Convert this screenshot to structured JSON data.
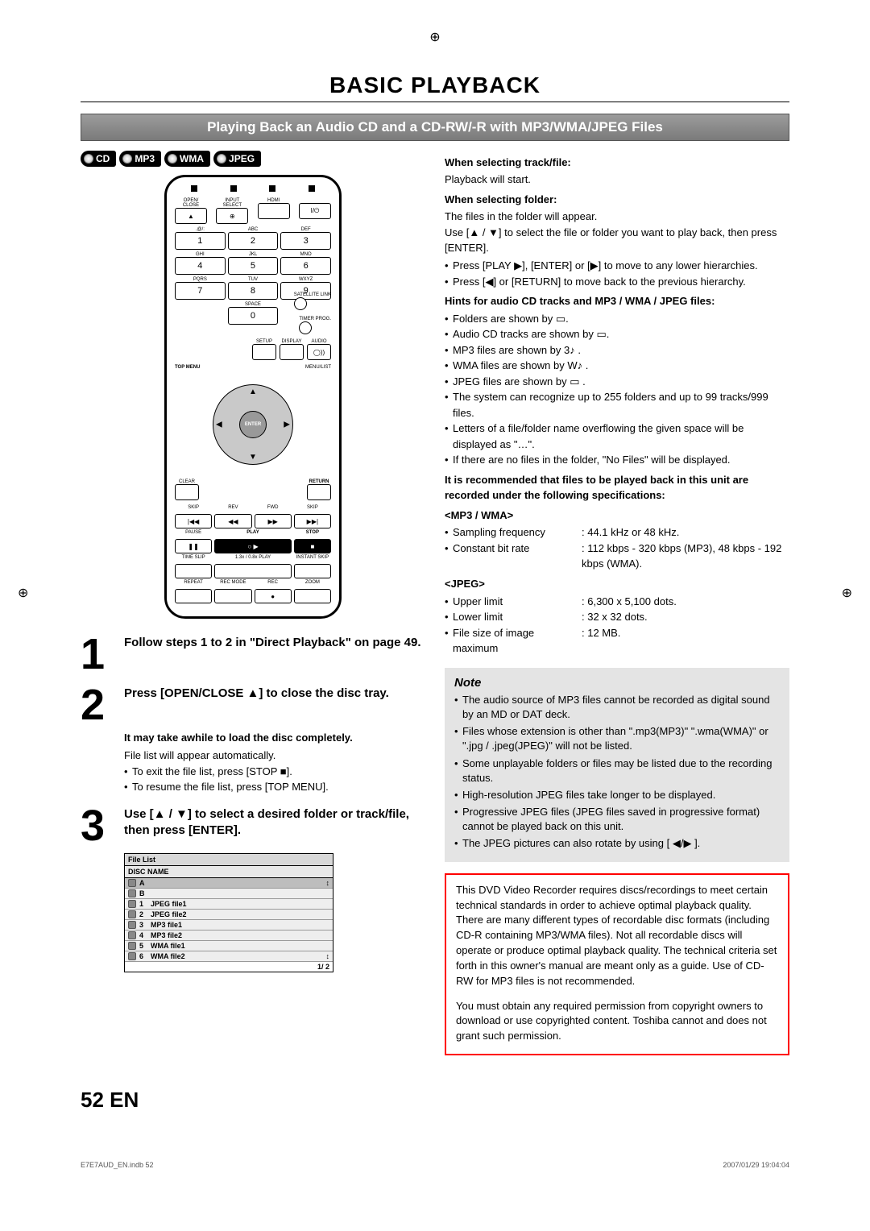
{
  "title": "BASIC PLAYBACK",
  "section_header": "Playing Back an Audio CD and a CD-RW/-R with MP3/WMA/JPEG Files",
  "badges": [
    "CD",
    "MP3",
    "WMA",
    "JPEG"
  ],
  "remote": {
    "row1_labels": [
      "OPEN/\nCLOSE",
      "INPUT\nSELECT",
      "HDMI",
      ""
    ],
    "numpad": [
      {
        "num": "1",
        "abc": ".@/:"
      },
      {
        "num": "2",
        "abc": "ABC"
      },
      {
        "num": "3",
        "abc": "DEF"
      },
      {
        "num": "4",
        "abc": "GHI"
      },
      {
        "num": "5",
        "abc": "JKL"
      },
      {
        "num": "6",
        "abc": "MNO"
      },
      {
        "num": "7",
        "abc": "PQRS"
      },
      {
        "num": "8",
        "abc": "TUV"
      },
      {
        "num": "9",
        "abc": "WXYZ"
      },
      {
        "num": "",
        "abc": ""
      },
      {
        "num": "0",
        "abc": "SPACE"
      },
      {
        "num": "",
        "abc": ""
      }
    ],
    "sat": "SATELLITE\nLINK",
    "timer": "TIMER\nPROG.",
    "setup": "SETUP",
    "display": "DISPLAY",
    "audio": "AUDIO",
    "topmenu": "TOP MENU",
    "menulist": "MENU/LIST",
    "enter": "ENTER",
    "clear": "CLEAR",
    "return": "RETURN",
    "transport_labels": [
      "SKIP",
      "REV",
      "FWD",
      "SKIP"
    ],
    "transport2_labels": [
      "PAUSE",
      "PLAY",
      "",
      "STOP"
    ],
    "bottom_labels": [
      "TIME SLIP",
      "1.3x / 0.8x PLAY",
      "",
      "INSTANT SKIP"
    ],
    "bottom2_labels": [
      "REPEAT",
      "REC MODE",
      "REC",
      "ZOOM"
    ]
  },
  "steps": [
    {
      "n": "1",
      "text": "Follow steps 1 to 2 in \"Direct Playback\" on page 49."
    },
    {
      "n": "2",
      "text": "Press [OPEN/CLOSE ▲] to close the disc tray.",
      "sub_bold": "It may take awhile to load the disc completely.",
      "sub": "File list will appear automatically.",
      "bullets": [
        "To exit the file list, press [STOP ■].",
        "To resume the file list, press [TOP MENU]."
      ]
    },
    {
      "n": "3",
      "text": "Use [▲ / ▼] to select a desired folder or track/file, then press [ENTER]."
    }
  ],
  "file_list": {
    "title": "File List",
    "disc": "DISC NAME",
    "rows": [
      {
        "ico": "folder",
        "text": "A",
        "hl": true,
        "arrow": "↕"
      },
      {
        "ico": "folder",
        "text": "B"
      },
      {
        "ico": "file",
        "num": "1",
        "text": "JPEG file1"
      },
      {
        "ico": "file",
        "num": "2",
        "text": "JPEG file2"
      },
      {
        "ico": "file",
        "num": "3",
        "text": "MP3 file1"
      },
      {
        "ico": "file",
        "num": "4",
        "text": "MP3 file2"
      },
      {
        "ico": "file",
        "num": "5",
        "text": "WMA file1"
      },
      {
        "ico": "file",
        "num": "6",
        "text": "WMA file2",
        "arrow": "↕"
      }
    ],
    "page": "1/ 2"
  },
  "rcol": {
    "h1": "When selecting track/file:",
    "p1": "Playback will start.",
    "h2": "When selecting folder:",
    "p2": "The files in the folder will appear.",
    "p3": "Use [▲ / ▼] to select the file or folder you want to play back, then press [ENTER].",
    "b1": [
      "Press [PLAY ▶], [ENTER] or [▶] to move to any lower hierarchies.",
      "Press [◀] or [RETURN] to move back to the previous hierarchy."
    ],
    "h3": "Hints for audio CD tracks and MP3 / WMA / JPEG files:",
    "b2": [
      "Folders are shown by ▭.",
      "Audio CD tracks are shown by ▭.",
      "MP3 files are shown by 3♪ .",
      "WMA files are shown by W♪ .",
      "JPEG files are shown by ▭ .",
      "The system can recognize up to 255 folders and up to 99 tracks/999 files.",
      "Letters of a file/folder name overflowing the given space will be displayed as \"…\".",
      "If there are no files in the folder, \"No Files\" will be displayed."
    ],
    "h4": "It is recommended that files to be played back in this unit are recorded under the following specifications:",
    "h5": "<MP3 / WMA>",
    "specs1": [
      {
        "k": "Sampling frequency",
        "v": ": 44.1 kHz or 48 kHz."
      },
      {
        "k": "Constant bit rate",
        "v": ": 112 kbps - 320 kbps (MP3), 48 kbps - 192 kbps (WMA)."
      }
    ],
    "h6": "<JPEG>",
    "specs2": [
      {
        "k": "Upper limit",
        "v": ": 6,300 x 5,100 dots."
      },
      {
        "k": "Lower limit",
        "v": ": 32 x 32 dots."
      },
      {
        "k": "File size of image maximum",
        "v": ": 12 MB."
      }
    ]
  },
  "note": {
    "title": "Note",
    "items": [
      "The audio source of MP3 files cannot be recorded as digital sound by an MD or DAT deck.",
      "Files whose extension is other than \".mp3(MP3)\" \".wma(WMA)\" or \".jpg / .jpeg(JPEG)\" will not be listed.",
      "Some unplayable folders or files may be listed due to the recording status.",
      "High-resolution JPEG files take longer to be displayed.",
      "Progressive JPEG files (JPEG files saved in progressive format) cannot be played back on this unit.",
      "The JPEG pictures can also rotate by using [ ◀/▶ ]."
    ]
  },
  "legal": {
    "p1": "This DVD Video Recorder requires discs/recordings to meet certain technical standards in order to achieve optimal playback quality. There are many different types of recordable disc formats (including CD-R containing MP3/WMA files). Not all recordable discs will operate or produce optimal playback quality. The technical criteria set forth in this owner's manual are meant only as a guide. Use of CD-RW for MP3 files is not recommended.",
    "p2": "You must obtain any required permission from copyright owners to download or use copyrighted content. Toshiba cannot and does not grant such permission."
  },
  "page_num": "52",
  "lang": "EN",
  "footer_left": "E7E7AUD_EN.indb   52",
  "footer_right": "2007/01/29   19:04:04"
}
